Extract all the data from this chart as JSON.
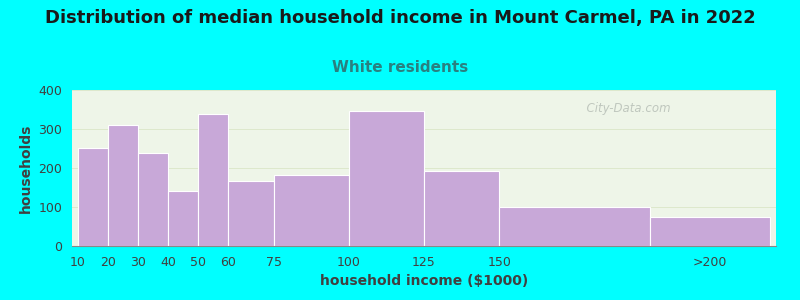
{
  "title": "Distribution of median household income in Mount Carmel, PA in 2022",
  "subtitle": "White residents",
  "xlabel": "household income ($1000)",
  "ylabel": "households",
  "background_color": "#00FFFF",
  "plot_bg_color": "#eef5e8",
  "bar_color": "#c8a8d8",
  "categories": [
    "10",
    "20",
    "30",
    "40",
    "50",
    "60",
    "75",
    "100",
    "125",
    "150",
    ">200"
  ],
  "values": [
    252,
    311,
    238,
    140,
    338,
    167,
    183,
    346,
    192,
    100,
    75
  ],
  "bin_lefts": [
    10,
    20,
    30,
    40,
    50,
    60,
    75,
    100,
    125,
    150,
    200
  ],
  "bin_rights": [
    20,
    30,
    40,
    50,
    60,
    75,
    100,
    125,
    150,
    200,
    240
  ],
  "xtick_positions": [
    10,
    20,
    30,
    40,
    50,
    60,
    75,
    100,
    125,
    150,
    220
  ],
  "ylim": [
    0,
    400
  ],
  "yticks": [
    0,
    100,
    200,
    300,
    400
  ],
  "xlim": [
    8,
    242
  ],
  "title_fontsize": 13,
  "subtitle_fontsize": 11,
  "label_fontsize": 10,
  "tick_fontsize": 9,
  "watermark": "  City-Data.com",
  "title_color": "#1a1a1a",
  "subtitle_color": "#2a8080",
  "axis_label_color": "#404040",
  "grid_color": "#dde8cc"
}
